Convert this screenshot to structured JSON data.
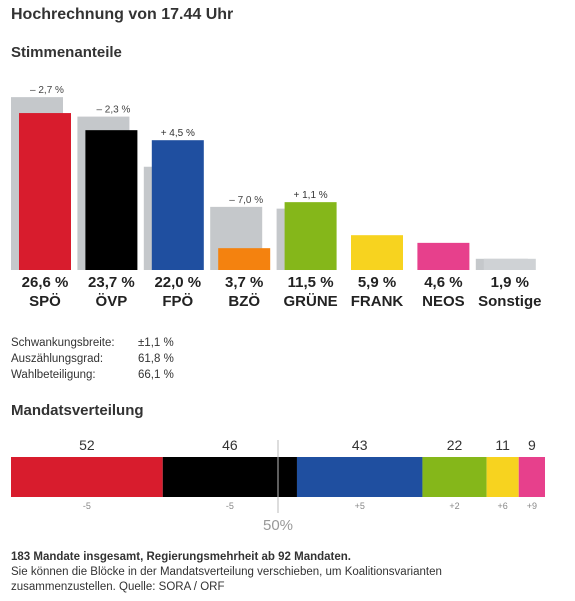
{
  "header": {
    "title": "Hochrechnung von 17.44 Uhr"
  },
  "votes": {
    "section_title": "Stimmenanteile"
  },
  "chart_data": [
    {
      "type": "bar",
      "title": "Stimmenanteile",
      "categories": [
        "SPÖ",
        "ÖVP",
        "FPÖ",
        "BZÖ",
        "GRÜNE",
        "FRANK",
        "NEOS",
        "Sonstige"
      ],
      "series": [
        {
          "values": [
            26.6,
            23.7,
            22.0,
            3.7,
            11.5,
            5.9,
            4.6,
            1.9
          ]
        },
        {
          "values": [
            29.3,
            26.0,
            17.5,
            10.7,
            10.4,
            null,
            null,
            1.9
          ]
        }
      ],
      "value_labels": [
        "26,6 %",
        "23,7 %",
        "22,0 %",
        "3,7 %",
        "11,5 %",
        "5,9 %",
        "4,6 %",
        "1,9 %"
      ],
      "change_labels": [
        "– 2,7 %",
        "– 2,3 %",
        "+ 4,5 %",
        "– 7,0 %",
        "+ 1,1 %",
        "",
        "",
        ""
      ],
      "colors": [
        "#d81c2d",
        "#000000",
        "#1f4fa0",
        "#f4820f",
        "#85b71a",
        "#f7d31f",
        "#e7408c",
        "#cfd2d5"
      ],
      "previous_color": "#c5c8cb",
      "ylim": [
        0,
        30
      ]
    },
    {
      "type": "stacked-bar",
      "title": "Mandatsverteilung",
      "categories": [
        "SPÖ",
        "ÖVP",
        "FPÖ",
        "GRÜNE",
        "FRANK",
        "NEOS"
      ],
      "values": [
        52,
        46,
        43,
        22,
        11,
        9
      ],
      "change_labels": [
        "-5",
        "-5",
        "+5",
        "+2",
        "+6",
        "+9"
      ],
      "colors": [
        "#d81c2d",
        "#000000",
        "#1f4fa0",
        "#85b71a",
        "#f7d31f",
        "#e7408c"
      ],
      "total": 183,
      "majority_label": "50%"
    }
  ],
  "stats": [
    {
      "label": "Schwankungsbreite:",
      "value": "±1,1 %"
    },
    {
      "label": "Auszählungsgrad:",
      "value": "61,8 %"
    },
    {
      "label": "Wahlbeteiligung:",
      "value": "66,1 %"
    }
  ],
  "seats": {
    "section_title": "Mandatsverteilung"
  },
  "footer": {
    "bold": "183 Mandate insgesamt, Regierungsmehrheit ab 92 Mandaten.",
    "line2": "Sie können die Blöcke in der Mandatsverteilung verschieben, um Koalitionsvarianten",
    "line3": "zusammenzustellen. Quelle: SORA / ORF"
  }
}
